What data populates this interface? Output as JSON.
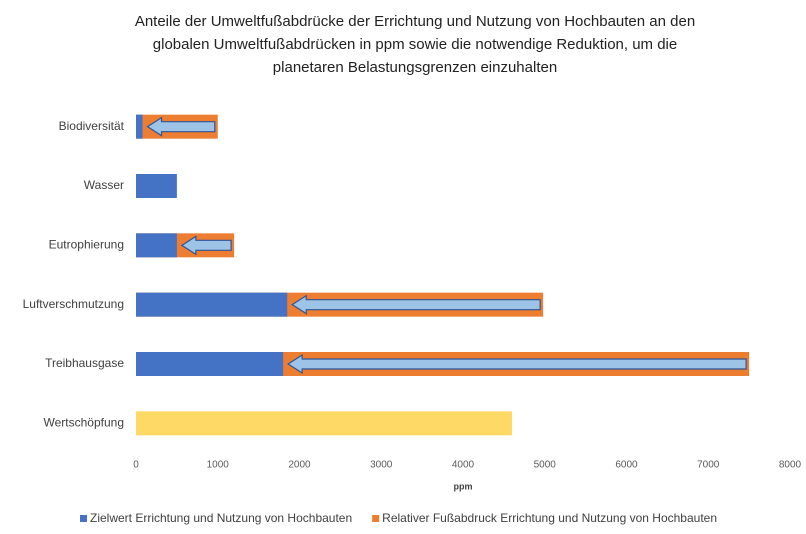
{
  "chart_data": {
    "type": "bar",
    "title": [
      "Anteile der Umweltfußabdrücke der Errichtung und Nutzung von Hochbauten an den",
      "globalen Umweltfußabdrücken in ppm sowie die notwendige Reduktion, um die",
      "planetaren Belastungsgrenzen einzuhalten"
    ],
    "orientation": "horizontal",
    "categories": [
      "Biodiversität",
      "Wasser",
      "Eutrophierung",
      "Luftverschmutzung",
      "Treibhausgase",
      "Wertschöpfung"
    ],
    "series": [
      {
        "name": "Relativer Fußabdruck Errichtung und Nutzung von Hochbauten",
        "color": "#ed7d31",
        "values": [
          1000,
          null,
          1200,
          4980,
          7500,
          null
        ]
      },
      {
        "name": "Zielwert Errichtung und Nutzung von Hochbauten",
        "color": "#4472c4",
        "colors": [
          "#4472c4",
          "#4472c4",
          "#4472c4",
          "#4472c4",
          "#4472c4",
          "#ffd966"
        ],
        "values": [
          80,
          500,
          500,
          1850,
          1800,
          4600
        ]
      }
    ],
    "legend_order": [
      1,
      0
    ],
    "xlabel": "ppm",
    "xlim": [
      0,
      8000
    ],
    "xticks": [
      0,
      1000,
      2000,
      3000,
      4000,
      5000,
      6000,
      7000,
      8000
    ],
    "arrows": true,
    "arrow_color": "#9dc3e6",
    "grid": false
  }
}
